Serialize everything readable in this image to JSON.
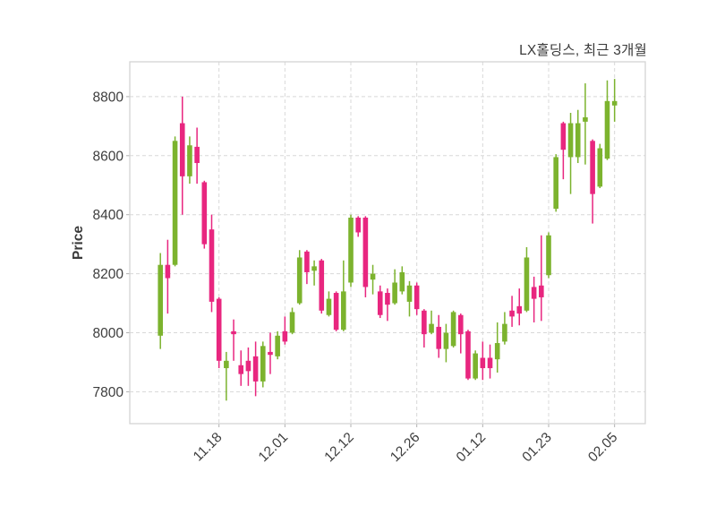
{
  "chart_title": "LX홀딩스, 최근 3개월",
  "chart_data": {
    "type": "candlestick",
    "title": "LX홀딩스, 최근 3개월",
    "ylabel": "Price",
    "xlabel": "",
    "grid": true,
    "legend": "none",
    "y_ticks": [
      7800,
      8000,
      8200,
      8400,
      8600,
      8800
    ],
    "y_domain": [
      7692,
      8918
    ],
    "x_tick_labels": [
      "11.18",
      "12.01",
      "12.12",
      "12.26",
      "01.12",
      "01.23",
      "02.05"
    ],
    "x_tick_indices": [
      8,
      17,
      26,
      35,
      44,
      53,
      62
    ],
    "colors": {
      "up": "#7cb32e",
      "down": "#e8267f",
      "grid_line": "#d8d8d8",
      "frame": "#d4d4d4",
      "tick": "#b0b0b0",
      "text": "#3d3d3d"
    },
    "candles_format": [
      "open",
      "high",
      "low",
      "close"
    ],
    "candles": [
      [
        7990,
        8270,
        7945,
        8230
      ],
      [
        8230,
        8315,
        8065,
        8185
      ],
      [
        8230,
        8665,
        8225,
        8650
      ],
      [
        8710,
        8800,
        8400,
        8530
      ],
      [
        8530,
        8665,
        8505,
        8635
      ],
      [
        8630,
        8695,
        8505,
        8575
      ],
      [
        8510,
        8515,
        8285,
        8300
      ],
      [
        8350,
        8400,
        8070,
        8105
      ],
      [
        8115,
        8120,
        7880,
        7905
      ],
      [
        7880,
        7935,
        7770,
        7905
      ],
      [
        8005,
        8045,
        7905,
        7995
      ],
      [
        7890,
        7940,
        7820,
        7860
      ],
      [
        7905,
        7950,
        7820,
        7870
      ],
      [
        7920,
        7970,
        7785,
        7835
      ],
      [
        7835,
        7970,
        7815,
        7955
      ],
      [
        7935,
        8000,
        7860,
        7925
      ],
      [
        7920,
        8005,
        7910,
        7990
      ],
      [
        8005,
        8055,
        7960,
        7970
      ],
      [
        8000,
        8085,
        7995,
        8070
      ],
      [
        8100,
        8280,
        8095,
        8255
      ],
      [
        8275,
        8280,
        8165,
        8205
      ],
      [
        8210,
        8245,
        8160,
        8225
      ],
      [
        8245,
        8250,
        8065,
        8075
      ],
      [
        8060,
        8140,
        8055,
        8115
      ],
      [
        8135,
        8140,
        8005,
        8010
      ],
      [
        8010,
        8245,
        8005,
        8140
      ],
      [
        8170,
        8400,
        8155,
        8390
      ],
      [
        8390,
        8395,
        8325,
        8340
      ],
      [
        8390,
        8395,
        8120,
        8155
      ],
      [
        8180,
        8230,
        8130,
        8200
      ],
      [
        8140,
        8160,
        8050,
        8060
      ],
      [
        8135,
        8150,
        8040,
        8095
      ],
      [
        8100,
        8215,
        8095,
        8170
      ],
      [
        8140,
        8225,
        8130,
        8205
      ],
      [
        8105,
        8175,
        8055,
        8160
      ],
      [
        8160,
        8170,
        8060,
        8080
      ],
      [
        8075,
        8080,
        7950,
        7995
      ],
      [
        8000,
        8075,
        7995,
        8030
      ],
      [
        8020,
        8060,
        7915,
        7945
      ],
      [
        7945,
        8030,
        7900,
        8000
      ],
      [
        7955,
        8075,
        7950,
        8070
      ],
      [
        8060,
        8065,
        7930,
        7995
      ],
      [
        8005,
        8010,
        7840,
        7845
      ],
      [
        7845,
        7940,
        7840,
        7930
      ],
      [
        7915,
        7970,
        7840,
        7880
      ],
      [
        7915,
        7960,
        7845,
        7880
      ],
      [
        7910,
        8035,
        7865,
        7965
      ],
      [
        7970,
        8070,
        7960,
        8030
      ],
      [
        8075,
        8125,
        8020,
        8055
      ],
      [
        8090,
        8150,
        8025,
        8065
      ],
      [
        8075,
        8290,
        8070,
        8255
      ],
      [
        8155,
        8190,
        8035,
        8115
      ],
      [
        8160,
        8330,
        8040,
        8120
      ],
      [
        8195,
        8340,
        8185,
        8330
      ],
      [
        8420,
        8605,
        8410,
        8595
      ],
      [
        8710,
        8715,
        8520,
        8620
      ],
      [
        8595,
        8745,
        8470,
        8710
      ],
      [
        8595,
        8755,
        8575,
        8710
      ],
      [
        8715,
        8845,
        8570,
        8730
      ],
      [
        8650,
        8655,
        8370,
        8470
      ],
      [
        8495,
        8640,
        8490,
        8625
      ],
      [
        8590,
        8855,
        8585,
        8785
      ],
      [
        8770,
        8860,
        8715,
        8785
      ]
    ]
  }
}
